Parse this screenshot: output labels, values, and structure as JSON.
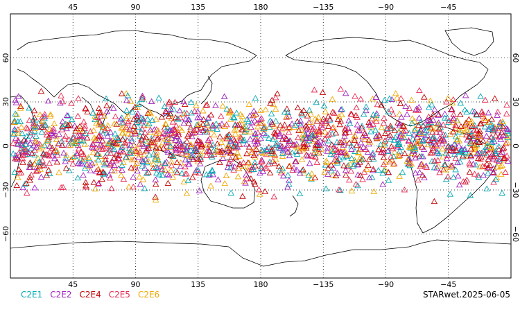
{
  "map": {
    "projection": "cylindrical equidistant, centered on the Pacific",
    "lon_range": [
      0,
      360
    ],
    "lat_range": [
      -90,
      90
    ],
    "lon_ticks": [
      {
        "lon": 45,
        "label": "45"
      },
      {
        "lon": 90,
        "label": "90"
      },
      {
        "lon": 135,
        "label": "135"
      },
      {
        "lon": 180,
        "label": "180"
      },
      {
        "lon": 225,
        "label": "−135"
      },
      {
        "lon": 270,
        "label": "−90"
      },
      {
        "lon": 315,
        "label": "−45"
      }
    ],
    "lat_ticks": [
      {
        "lat": 60,
        "label": "60"
      },
      {
        "lat": 30,
        "label": "30"
      },
      {
        "lat": 0,
        "label": "0"
      },
      {
        "lat": -30,
        "label": "−30"
      },
      {
        "lat": -60,
        "label": "−60"
      }
    ],
    "grid": "dotted",
    "coastline_color": "#000000",
    "marker": "open-triangle",
    "observation_band_lat": [
      -40,
      45
    ]
  },
  "series": [
    {
      "name": "C2E1",
      "color": "#00a8b4"
    },
    {
      "name": "C2E2",
      "color": "#a020c0"
    },
    {
      "name": "C2E4",
      "color": "#c00000"
    },
    {
      "name": "C2E5",
      "color": "#e82850"
    },
    {
      "name": "C2E6",
      "color": "#f0a800"
    }
  ],
  "caption": "STARwet.2025-06-05"
}
